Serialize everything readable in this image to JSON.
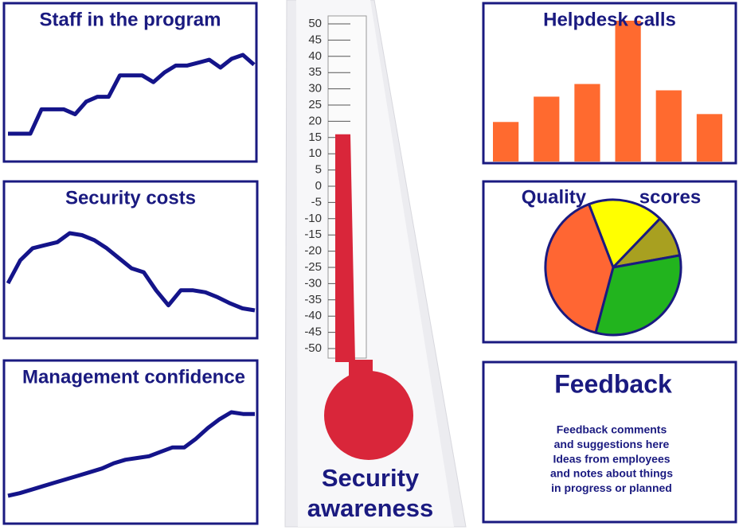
{
  "chart_data": [
    {
      "type": "line",
      "title": "Staff in the program",
      "color": "#14148a",
      "values": [
        47,
        47,
        47,
        72,
        72,
        72,
        67,
        80,
        85,
        85,
        107,
        107,
        107,
        100,
        110,
        117,
        117,
        120,
        123,
        115,
        124,
        128,
        118
      ]
    },
    {
      "type": "line",
      "title": "Security costs",
      "color": "#14148a",
      "values": [
        47,
        70,
        82,
        85,
        88,
        97,
        95,
        90,
        82,
        72,
        62,
        58,
        40,
        25,
        40,
        40,
        38,
        33,
        27,
        22,
        20
      ]
    },
    {
      "type": "line",
      "title": "Management confidence",
      "color": "#14148a",
      "values": [
        45,
        48,
        52,
        56,
        60,
        64,
        68,
        72,
        76,
        82,
        86,
        88,
        90,
        95,
        100,
        100,
        110,
        122,
        132,
        140,
        138,
        138
      ]
    },
    {
      "type": "bar",
      "title": "Helpdesk calls",
      "color": "#ff6a2f",
      "values": [
        50,
        82,
        98,
        178,
        90,
        60
      ]
    },
    {
      "type": "pie",
      "title": "Quality scores",
      "values": [
        18,
        10,
        32,
        40
      ],
      "colors": [
        "#ffff00",
        "#a8a020",
        "#22b41e",
        "#ff6633"
      ]
    },
    {
      "type": "thermometer",
      "title": "Security awareness",
      "value": 16,
      "color": "#d9263a",
      "ylim": [
        -50,
        50
      ],
      "yticks": [
        50,
        45,
        40,
        35,
        30,
        25,
        20,
        15,
        10,
        5,
        0,
        -5,
        -10,
        -15,
        -20,
        -25,
        -30,
        -35,
        -40,
        -45,
        -50
      ]
    }
  ],
  "feedback": {
    "title": "Feedback",
    "lines": [
      "Feedback comments",
      "and suggestions here",
      "Ideas from employees",
      "and notes about things",
      "in progress or planned"
    ]
  }
}
